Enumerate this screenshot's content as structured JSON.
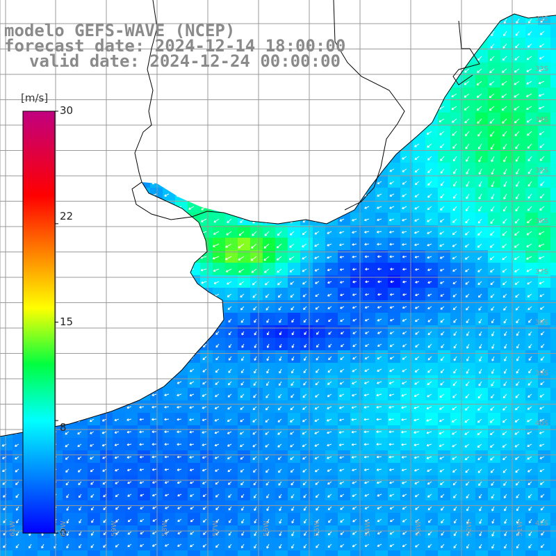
{
  "title": {
    "line1": "modelo GEFS-WAVE (NCEP)",
    "line2": "forecast date: 2024-12-14 18:00:00",
    "line3": "valid date: 2024-12-24 00:00:00"
  },
  "colorbar": {
    "unit": "[m/s]",
    "ticks": [
      "30",
      "22",
      "15",
      "8",
      "0"
    ],
    "tick_values": [
      30,
      22,
      15,
      8,
      0
    ],
    "min": 0,
    "max": 30,
    "stops": [
      {
        "v": 0,
        "color": "#0000ff"
      },
      {
        "v": 4,
        "color": "#0080ff"
      },
      {
        "v": 8,
        "color": "#00ffff"
      },
      {
        "v": 12,
        "color": "#00ff40"
      },
      {
        "v": 16,
        "color": "#ffff00"
      },
      {
        "v": 20,
        "color": "#ff8000"
      },
      {
        "v": 24,
        "color": "#ff0000"
      },
      {
        "v": 30,
        "color": "#c00080"
      }
    ]
  },
  "grid": {
    "lat_labels": [
      "32S",
      "33S",
      "34S",
      "35S",
      "36S",
      "37S",
      "38S",
      "39S",
      "40S",
      "41S"
    ],
    "lon_labels": [
      "61W",
      "60W",
      "59W",
      "58W",
      "57W",
      "56W",
      "55W",
      "54W",
      "53W",
      "52W",
      "51W"
    ],
    "lat_values": [
      -32,
      -33,
      -34,
      -35,
      -36,
      -37,
      -38,
      -39,
      -40,
      -41
    ],
    "lon_values": [
      -61,
      -60,
      -59,
      -58,
      -57,
      -56,
      -55,
      -54,
      -53,
      -52,
      -51
    ]
  },
  "map": {
    "region": "Rio de la Plata and South Atlantic coast",
    "variable": "wind speed",
    "land_color": "#ffffff",
    "coast_color": "#000000",
    "grid_color": "#999999",
    "arrow_color": "#ffffff"
  }
}
